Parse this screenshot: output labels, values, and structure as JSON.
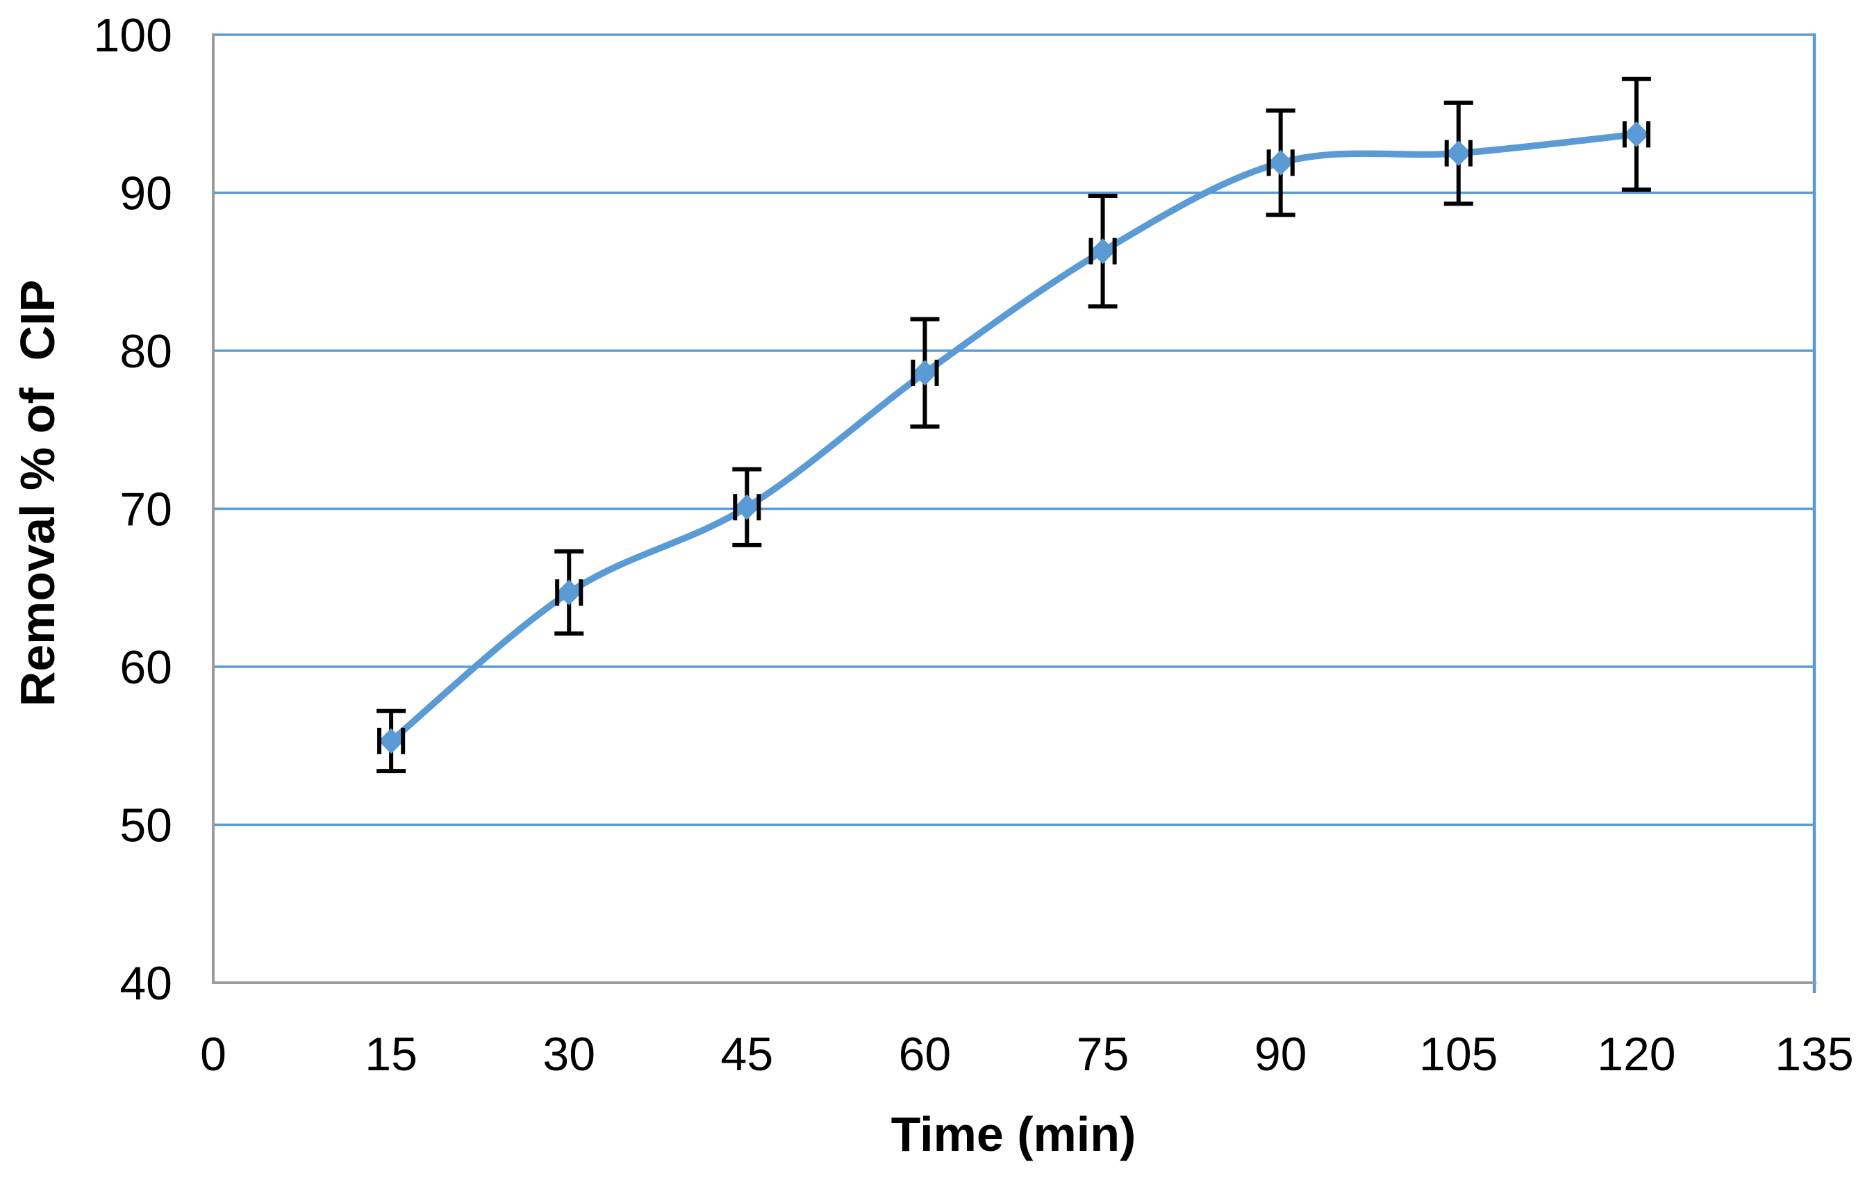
{
  "page": {
    "background_color": "#ffffff"
  },
  "chart_data": {
    "type": "line",
    "title": "",
    "xlabel": "Time (min)",
    "ylabel": "Removal % of  CIP",
    "series": [
      {
        "name": "Removal % of CIP",
        "x": [
          15,
          30,
          45,
          60,
          75,
          90,
          105,
          120
        ],
        "y": [
          55.3,
          64.7,
          70.1,
          78.6,
          86.3,
          91.9,
          92.5,
          93.7
        ],
        "y_err": [
          1.9,
          2.6,
          2.4,
          3.4,
          3.5,
          3.3,
          3.2,
          3.5
        ],
        "x_err": 1
      }
    ],
    "x_ticks": [
      0,
      15,
      30,
      45,
      60,
      75,
      90,
      105,
      120,
      135
    ],
    "y_ticks": [
      40,
      50,
      60,
      70,
      80,
      90,
      100
    ],
    "xlim": [
      0,
      135
    ],
    "ylim": [
      40,
      100
    ],
    "grid": "horizontal-only",
    "legend": "none",
    "marker": "diamond",
    "line_style": "smoothed",
    "colors": {
      "series": "#5b9bd5",
      "gridlines": "#5b9bd5",
      "plot_right_border": "#5b9bd5",
      "axis": "#9b9b9b",
      "error_bars": "#000000",
      "text": "#000000"
    }
  }
}
